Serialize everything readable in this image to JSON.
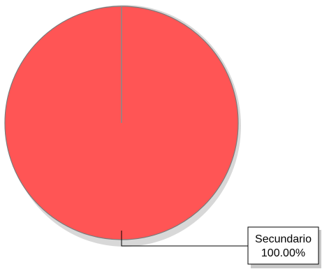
{
  "chart_data": {
    "type": "pie",
    "slices": [
      {
        "label": "Secundario",
        "value": 100.0,
        "percent_label": "100.00%",
        "color": "#ff5555"
      }
    ]
  }
}
